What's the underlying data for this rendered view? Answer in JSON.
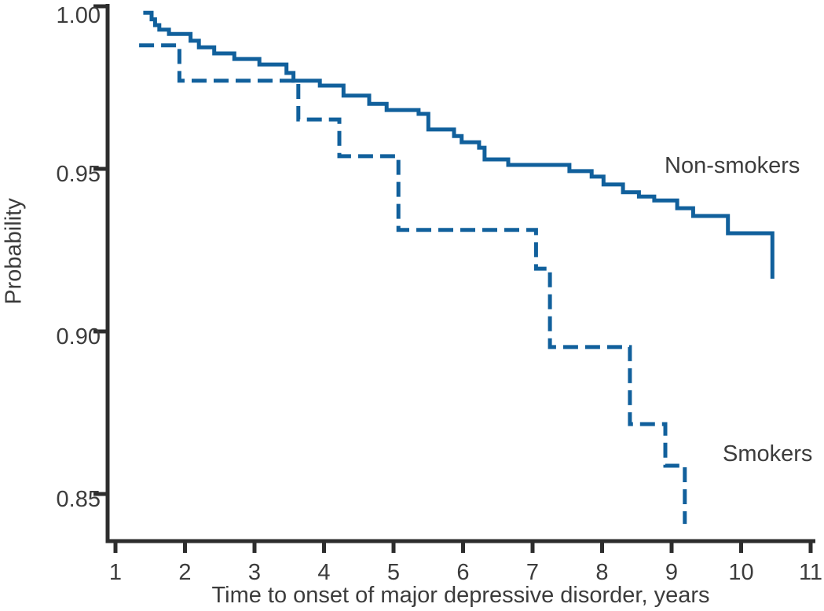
{
  "figure": {
    "background": "#ffffff",
    "axis_color": "#2d2d2d",
    "text_color": "#3c3c3c",
    "line_color": "#11609c"
  },
  "chart_data": {
    "type": "line",
    "subtype": "kaplan-meier-step-function",
    "title": "",
    "xlabel": "Time to onset of major depressive disorder, years",
    "ylabel": "Probability",
    "xlim": [
      1,
      11
    ],
    "ylim": [
      0.835,
      1.0
    ],
    "grid": false,
    "legend_position": "inline-annotations",
    "x_ticks": [
      1,
      2,
      3,
      4,
      5,
      6,
      7,
      8,
      9,
      10,
      11
    ],
    "x_tick_labels": [
      "1",
      "2",
      "3",
      "4",
      "5",
      "6",
      "7",
      "8",
      "9",
      "10",
      "11"
    ],
    "y_ticks": [
      1.0,
      0.95,
      0.9,
      0.85
    ],
    "y_tick_labels": [
      "1.00",
      "0.95",
      "0.90",
      "0.85"
    ],
    "series": [
      {
        "name": "Non-smokers",
        "style": "solid",
        "color": "#11609c",
        "points": [
          [
            1.4,
            0.998
          ],
          [
            1.52,
            0.996
          ],
          [
            1.57,
            0.9942
          ],
          [
            1.63,
            0.9928
          ],
          [
            1.77,
            0.9915
          ],
          [
            2.08,
            0.9894
          ],
          [
            2.2,
            0.9874
          ],
          [
            2.42,
            0.9855
          ],
          [
            2.71,
            0.9838
          ],
          [
            3.07,
            0.9821
          ],
          [
            3.46,
            0.9795
          ],
          [
            3.56,
            0.9771
          ],
          [
            3.94,
            0.9756
          ],
          [
            4.28,
            0.9725
          ],
          [
            4.65,
            0.97
          ],
          [
            4.9,
            0.9681
          ],
          [
            5.36,
            0.9669
          ],
          [
            5.5,
            0.9621
          ],
          [
            5.87,
            0.9601
          ],
          [
            5.98,
            0.9582
          ],
          [
            6.23,
            0.9565
          ],
          [
            6.31,
            0.9529
          ],
          [
            6.65,
            0.9512
          ],
          [
            7.53,
            0.9493
          ],
          [
            7.85,
            0.9476
          ],
          [
            8.02,
            0.9452
          ],
          [
            8.3,
            0.9428
          ],
          [
            8.53,
            0.9415
          ],
          [
            8.75,
            0.9403
          ],
          [
            9.08,
            0.9379
          ],
          [
            9.31,
            0.9355
          ],
          [
            9.81,
            0.9302
          ],
          [
            10.45,
            0.9162
          ]
        ]
      },
      {
        "name": "Smokers",
        "style": "dashed",
        "color": "#11609c",
        "points": [
          [
            1.34,
            0.988
          ],
          [
            1.92,
            0.9771
          ],
          [
            3.63,
            0.9652
          ],
          [
            4.22,
            0.9539
          ],
          [
            5.07,
            0.9312
          ],
          [
            7.05,
            0.9193
          ],
          [
            7.25,
            0.8952
          ],
          [
            8.4,
            0.8715
          ],
          [
            8.91,
            0.8587
          ],
          [
            9.19,
            0.8408
          ]
        ]
      }
    ]
  }
}
